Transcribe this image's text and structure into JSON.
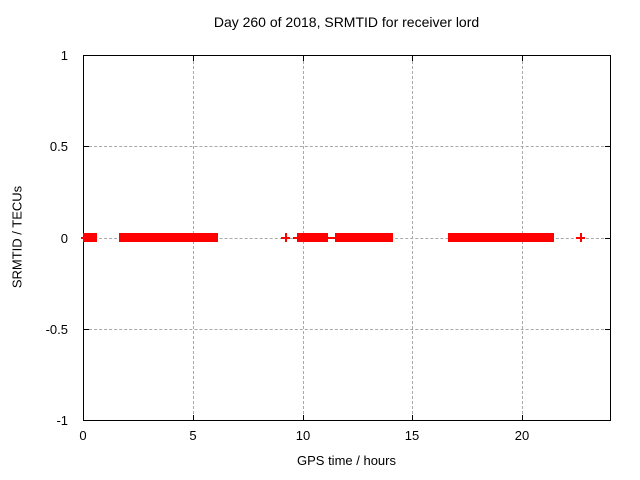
{
  "chart_data": {
    "type": "scatter",
    "title": "Day 260 of 2018, SRMTID for receiver lord",
    "xlabel": "GPS time / hours",
    "ylabel": "SRMTID / TECUs",
    "xlim": [
      0,
      24
    ],
    "ylim": [
      -1,
      1
    ],
    "xticks": [
      0,
      5,
      10,
      15,
      20
    ],
    "yticks": [
      1,
      0.5,
      0,
      -0.5,
      -1
    ],
    "grid": true,
    "legend": "none",
    "colors": {
      "background": "#ffffff",
      "axis": "#000000",
      "grid": "#a9a9a9",
      "marker": "#ff0000"
    },
    "series": [
      {
        "name": "SRMTID",
        "marker": "plus",
        "color": "#ff0000",
        "y_value": 0,
        "isolated_points_x": [
          0.1,
          9.2,
          9.75,
          9.9,
          10.55,
          11.1,
          11.5,
          22.65
        ],
        "dense_segments_x": [
          [
            0.2,
            0.45
          ],
          [
            1.85,
            5.95
          ],
          [
            9.95,
            10.4
          ],
          [
            10.65,
            10.95
          ],
          [
            11.78,
            13.9
          ],
          [
            16.85,
            19.7
          ],
          [
            19.9,
            21.25
          ]
        ]
      }
    ]
  }
}
